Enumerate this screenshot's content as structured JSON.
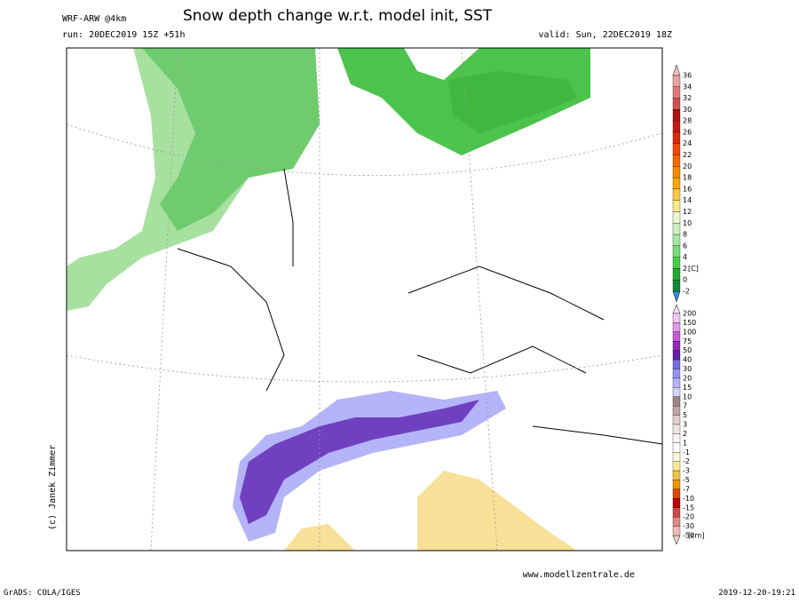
{
  "header": {
    "model": "WRF-ARW @4km",
    "title": "Snow depth change w.r.t. model init, SST",
    "run": "run: 20DEC2019 15Z +51h",
    "valid": "valid: Sun, 22DEC2019 18Z"
  },
  "map": {
    "credit": "(c) Janek Zimmer",
    "website": "www.modellzentrale.de"
  },
  "footer": {
    "software": "GrADS: COLA/IGES",
    "timestamp": "2019-12-20-19:21"
  },
  "sst_legend": {
    "unit": "[C]",
    "labels": [
      36,
      34,
      32,
      30,
      28,
      26,
      24,
      22,
      20,
      18,
      16,
      14,
      12,
      10,
      8,
      6,
      4,
      2,
      0,
      -2
    ],
    "colors": [
      "#eba0a0",
      "#e07878",
      "#d05050",
      "#b01010",
      "#c81818",
      "#e02808",
      "#f04800",
      "#f86800",
      "#f88800",
      "#f8a800",
      "#f8c840",
      "#f8e888",
      "#eaf8d0",
      "#ccf0c0",
      "#a4e8a4",
      "#78dc78",
      "#48cc48",
      "#20a830",
      "#108838"
    ]
  },
  "snow_legend": {
    "unit": "[cm]",
    "labels": [
      200,
      150,
      100,
      75,
      50,
      40,
      30,
      20,
      15,
      10,
      7,
      5,
      3,
      2,
      1,
      -1,
      -2,
      -3,
      -5,
      -7,
      -10,
      -15,
      -20,
      -30,
      -50
    ],
    "colors": [
      "#f0c8f4",
      "#e098ec",
      "#c858d8",
      "#9428b8",
      "#6420a8",
      "#7070e0",
      "#9494f0",
      "#b4b4f8",
      "#d4d4fa",
      "#a08484",
      "#c4a4a4",
      "#e2cccc",
      "#f2e4e4",
      "#faf4f4",
      "#ffffff",
      "#fff8d4",
      "#f8e898",
      "#f0c448",
      "#f09400",
      "#e04400",
      "#c00000",
      "#d04848",
      "#e08888",
      "#f0b8b8"
    ]
  }
}
